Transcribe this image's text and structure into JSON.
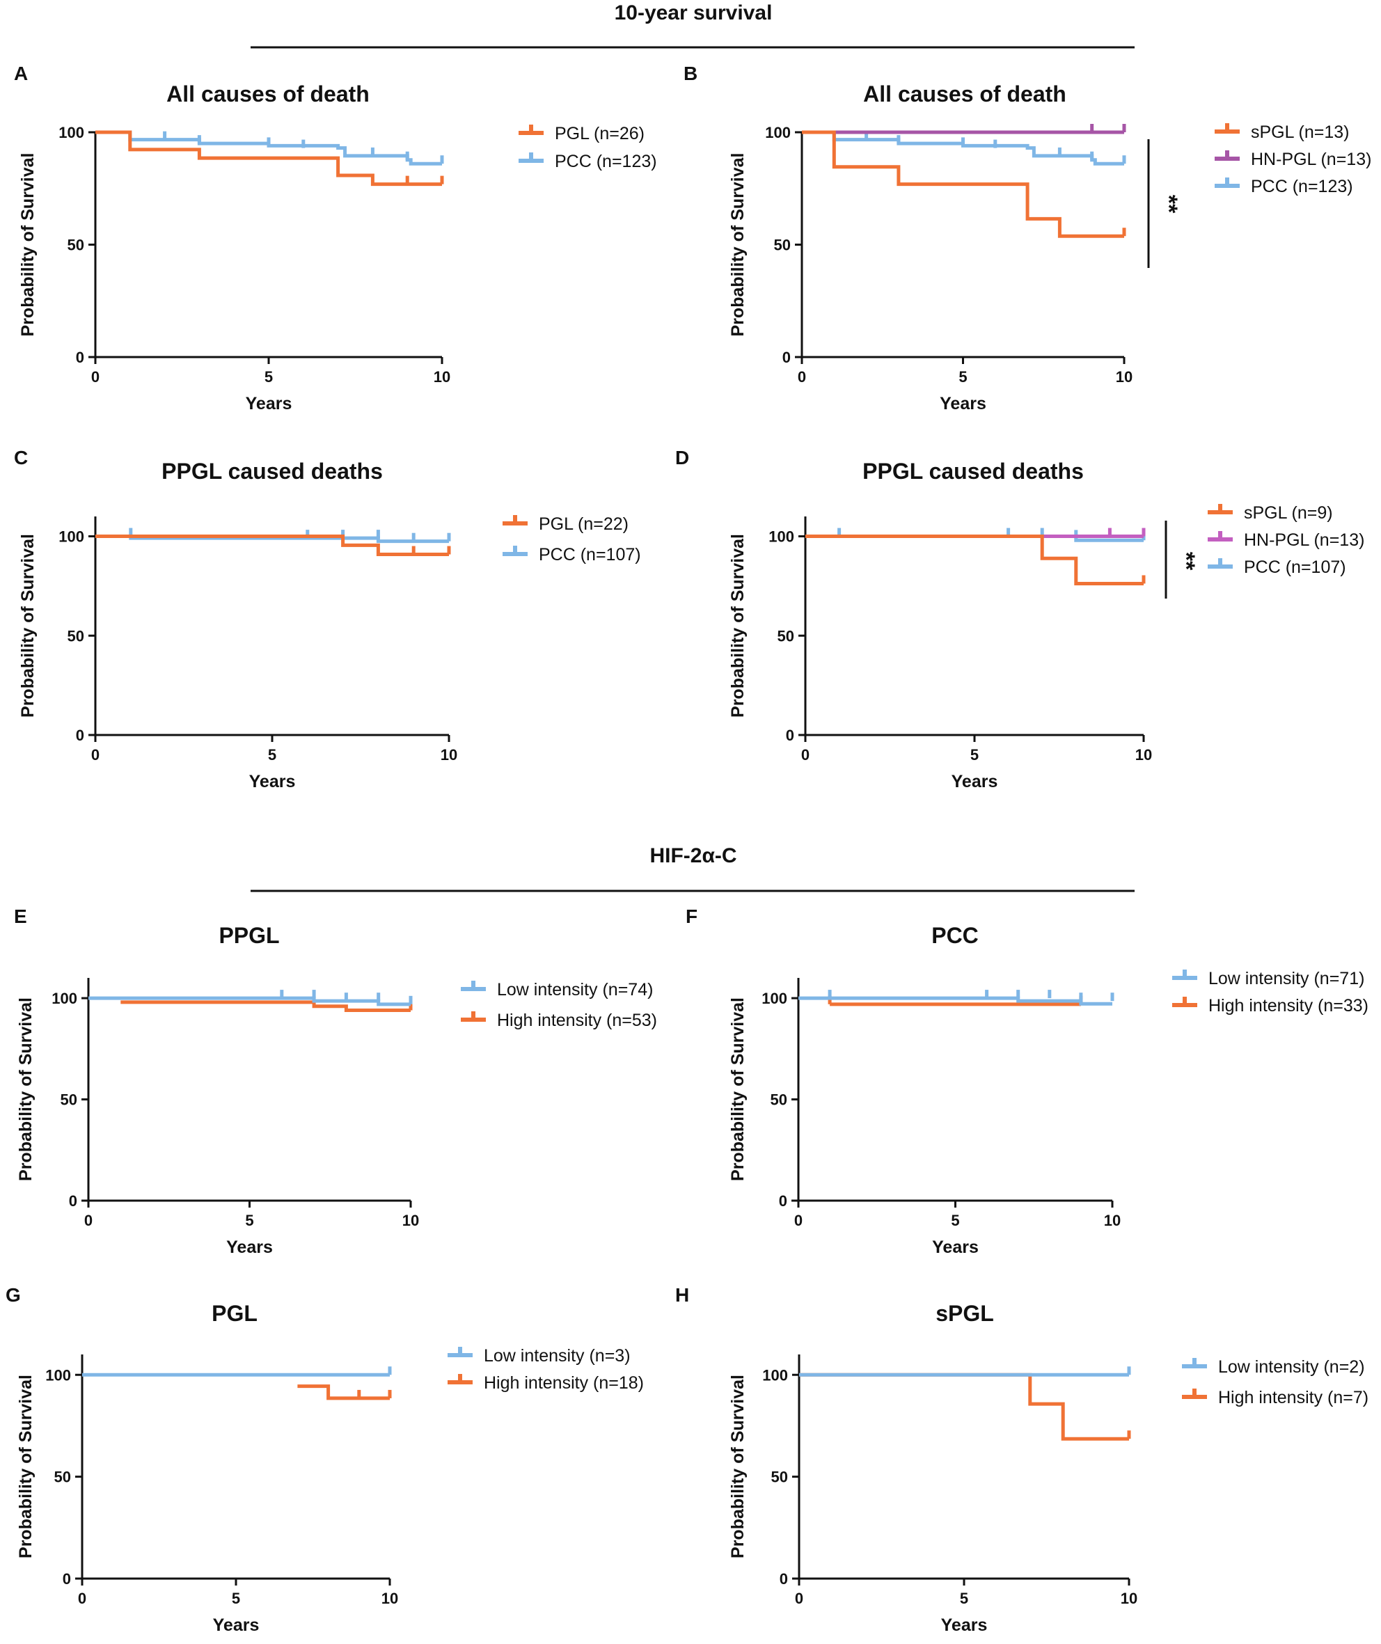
{
  "sections": [
    {
      "title": "10-year survival"
    },
    {
      "title": "HIF-2α-C"
    }
  ],
  "colors": {
    "orange": "#f07235",
    "blue": "#7fb6e6",
    "purple": "#a655a6",
    "axis": "#111111"
  },
  "chart_data": [
    {
      "panel": "A",
      "type": "line",
      "curve": "kaplan-meier step",
      "title": "All causes of death",
      "xlabel": "Years",
      "ylabel": "Probability of Survival",
      "xlim": [
        0,
        10
      ],
      "ylim": [
        0,
        100
      ],
      "xticks": [
        0,
        5,
        10
      ],
      "yticks": [
        0,
        50,
        100
      ],
      "legend_position": "right",
      "series": [
        {
          "name": "PGL (n=26)",
          "color": "#f07235",
          "steps": [
            [
              0,
              100
            ],
            [
              1,
              92.3
            ],
            [
              3,
              88.5
            ],
            [
              7,
              80.8
            ],
            [
              8,
              76.9
            ],
            [
              10,
              76.9
            ]
          ],
          "censored": [
            [
              9,
              76.9
            ],
            [
              10,
              76.9
            ]
          ]
        },
        {
          "name": "PCC (n=123)",
          "color": "#7fb6e6",
          "steps": [
            [
              0,
              100
            ],
            [
              1,
              96.7
            ],
            [
              3,
              95
            ],
            [
              5,
              94
            ],
            [
              7,
              93
            ],
            [
              7.2,
              89.5
            ],
            [
              9,
              87.7
            ],
            [
              9.1,
              86
            ],
            [
              10,
              86
            ]
          ],
          "censored": [
            [
              2,
              96.7
            ],
            [
              3,
              95
            ],
            [
              5,
              94
            ],
            [
              6,
              93
            ],
            [
              8,
              89.5
            ],
            [
              9,
              87.7
            ],
            [
              10,
              86
            ]
          ]
        }
      ]
    },
    {
      "panel": "B",
      "type": "line",
      "curve": "kaplan-meier step",
      "title": "All causes of death",
      "xlabel": "Years",
      "ylabel": "Probability of Survival",
      "xlim": [
        0,
        10
      ],
      "ylim": [
        0,
        100
      ],
      "xticks": [
        0,
        5,
        10
      ],
      "yticks": [
        0,
        50,
        100
      ],
      "legend_position": "right",
      "significance": "**",
      "series": [
        {
          "name": "sPGL  (n=13)",
          "color": "#f07235",
          "steps": [
            [
              0,
              100
            ],
            [
              1,
              84.6
            ],
            [
              3,
              76.9
            ],
            [
              7,
              61.5
            ],
            [
              8,
              53.8
            ],
            [
              10,
              53.8
            ]
          ],
          "censored": [
            [
              10,
              53.8
            ]
          ]
        },
        {
          "name": "HN-PGL (n=13)",
          "color": "#a655a6",
          "steps": [
            [
              0,
              100
            ],
            [
              10,
              100
            ]
          ],
          "censored": [
            [
              9,
              100
            ],
            [
              10,
              100
            ]
          ]
        },
        {
          "name": "PCC (n=123)",
          "color": "#7fb6e6",
          "steps": [
            [
              0,
              100
            ],
            [
              1,
              96.7
            ],
            [
              3,
              95
            ],
            [
              5,
              94
            ],
            [
              7,
              93
            ],
            [
              7.2,
              89.5
            ],
            [
              9,
              87.7
            ],
            [
              9.1,
              86
            ],
            [
              10,
              86
            ]
          ],
          "censored": [
            [
              2,
              96.7
            ],
            [
              3,
              95
            ],
            [
              5,
              94
            ],
            [
              6,
              93
            ],
            [
              8,
              89.5
            ],
            [
              9,
              87.7
            ],
            [
              10,
              86
            ]
          ]
        }
      ]
    },
    {
      "panel": "C",
      "type": "line",
      "curve": "kaplan-meier step",
      "title": "PPGL caused deaths",
      "xlabel": "Years",
      "ylabel": "Probability of Survival",
      "xlim": [
        0,
        10
      ],
      "ylim": [
        0,
        110
      ],
      "xticks": [
        0,
        5,
        10
      ],
      "yticks": [
        0,
        50,
        100
      ],
      "legend_position": "right",
      "series": [
        {
          "name": "PGL (n=22)",
          "color": "#f07235",
          "steps": [
            [
              0,
              100
            ],
            [
              7,
              95.5
            ],
            [
              8,
              90.9
            ],
            [
              10,
              90.9
            ]
          ],
          "censored": [
            [
              9,
              90.9
            ],
            [
              10,
              90.9
            ]
          ]
        },
        {
          "name": "PCC (n=107)",
          "color": "#7fb6e6",
          "steps": [
            [
              0,
              100
            ],
            [
              1,
              99.1
            ],
            [
              8,
              97.5
            ],
            [
              10,
              97.5
            ]
          ],
          "censored": [
            [
              1,
              100
            ],
            [
              6,
              99.1
            ],
            [
              7,
              99.1
            ],
            [
              8,
              99.1
            ],
            [
              9,
              97.5
            ],
            [
              10,
              97.5
            ]
          ]
        }
      ]
    },
    {
      "panel": "D",
      "type": "line",
      "curve": "kaplan-meier step",
      "title": "PPGL caused deaths",
      "xlabel": "Years",
      "ylabel": "Probability of Survival",
      "xlim": [
        0,
        10
      ],
      "ylim": [
        0,
        110
      ],
      "xticks": [
        0,
        5,
        10
      ],
      "yticks": [
        0,
        50,
        100
      ],
      "legend_position": "right",
      "significance": "**",
      "series": [
        {
          "name": "sPGL (n=9)",
          "color": "#f07235",
          "steps": [
            [
              0,
              100
            ],
            [
              7,
              88.9
            ],
            [
              8,
              76.2
            ],
            [
              10,
              76.2
            ]
          ],
          "censored": [
            [
              10,
              76.2
            ]
          ]
        },
        {
          "name": "HN-PGL (n=13)",
          "color": "#c35fc0",
          "steps": [
            [
              7,
              100
            ],
            [
              10,
              100
            ]
          ],
          "censored": [
            [
              9,
              100
            ],
            [
              10,
              100
            ]
          ]
        },
        {
          "name": "PCC (n=107)",
          "color": "#7fb6e6",
          "steps": [
            [
              0,
              100
            ],
            [
              8,
              98
            ],
            [
              10,
              98
            ]
          ],
          "censored": [
            [
              1,
              100
            ],
            [
              6,
              100
            ],
            [
              7,
              100
            ],
            [
              8,
              99
            ],
            [
              10,
              98
            ]
          ]
        }
      ]
    },
    {
      "panel": "E",
      "type": "line",
      "curve": "kaplan-meier step",
      "title": "PPGL",
      "xlabel": "Years",
      "ylabel": "Probability of Survival",
      "xlim": [
        0,
        10
      ],
      "ylim": [
        0,
        110
      ],
      "xticks": [
        0,
        5,
        10
      ],
      "yticks": [
        0,
        50,
        100
      ],
      "legend_position": "right",
      "series": [
        {
          "name": "Low intensity (n=74)",
          "color": "#7fb6e6",
          "steps": [
            [
              0,
              100
            ],
            [
              7,
              98.6
            ],
            [
              9,
              97
            ],
            [
              10,
              97
            ]
          ],
          "censored": [
            [
              6,
              100
            ],
            [
              7,
              100
            ],
            [
              8,
              98.6
            ],
            [
              9,
              98.6
            ],
            [
              10,
              97
            ]
          ]
        },
        {
          "name": "High intensity (n=53)",
          "color": "#f07235",
          "steps": [
            [
              1,
              98
            ],
            [
              7,
              96
            ],
            [
              8,
              94
            ],
            [
              10,
              94
            ]
          ],
          "censored": [
            [
              10,
              94
            ]
          ]
        }
      ]
    },
    {
      "panel": "F",
      "type": "line",
      "curve": "kaplan-meier step",
      "title": "PCC",
      "xlabel": "Years",
      "ylabel": "Probability of Survival",
      "xlim": [
        0,
        10
      ],
      "ylim": [
        0,
        110
      ],
      "xticks": [
        0,
        5,
        10
      ],
      "yticks": [
        0,
        50,
        100
      ],
      "legend_position": "top-right",
      "series": [
        {
          "name": "Low intensity (n=71)",
          "color": "#7fb6e6",
          "steps": [
            [
              0,
              100
            ],
            [
              7,
              98.6
            ],
            [
              9,
              97.2
            ],
            [
              10,
              97.2
            ]
          ],
          "censored": [
            [
              1,
              100
            ],
            [
              6,
              100
            ],
            [
              7,
              100
            ],
            [
              8,
              100
            ],
            [
              9,
              98.6
            ],
            [
              10,
              98.6
            ]
          ]
        },
        {
          "name": "High intensity (n=33)",
          "color": "#f07235",
          "steps": [
            [
              1,
              97
            ],
            [
              9,
              97
            ]
          ],
          "censored": [
            [
              1,
              97
            ],
            [
              9,
              97
            ]
          ]
        }
      ]
    },
    {
      "panel": "G",
      "type": "line",
      "curve": "kaplan-meier step",
      "title": "PGL",
      "xlabel": "Years",
      "ylabel": "Probability of Survival",
      "xlim": [
        0,
        10
      ],
      "ylim": [
        0,
        110
      ],
      "xticks": [
        0,
        5,
        10
      ],
      "yticks": [
        0,
        50,
        100
      ],
      "legend_position": "top-right",
      "series": [
        {
          "name": "Low intensity (n=3)",
          "color": "#7fb6e6",
          "steps": [
            [
              0,
              100
            ],
            [
              10,
              100
            ]
          ],
          "censored": [
            [
              10,
              100
            ]
          ]
        },
        {
          "name": "High intensity (n=18)",
          "color": "#f07235",
          "steps": [
            [
              7,
              94.4
            ],
            [
              8,
              88.5
            ],
            [
              10,
              88.5
            ]
          ],
          "censored": [
            [
              9,
              88.5
            ],
            [
              10,
              88.5
            ]
          ]
        }
      ]
    },
    {
      "panel": "H",
      "type": "line",
      "curve": "kaplan-meier step",
      "title": "sPGL",
      "xlabel": "Years",
      "ylabel": "Probability of Survival",
      "xlim": [
        0,
        10
      ],
      "ylim": [
        0,
        110
      ],
      "xticks": [
        0,
        5,
        10
      ],
      "yticks": [
        0,
        50,
        100
      ],
      "legend_position": "right",
      "series": [
        {
          "name": "Low intensity (n=2)",
          "color": "#7fb6e6",
          "steps": [
            [
              0,
              100
            ],
            [
              10,
              100
            ]
          ],
          "censored": [
            [
              10,
              100
            ]
          ]
        },
        {
          "name": "High intensity (n=7)",
          "color": "#f07235",
          "steps": [
            [
              0,
              100
            ],
            [
              7,
              85.7
            ],
            [
              8,
              68.6
            ],
            [
              10,
              68.6
            ]
          ],
          "censored": [
            [
              10,
              68.6
            ]
          ]
        }
      ]
    }
  ]
}
